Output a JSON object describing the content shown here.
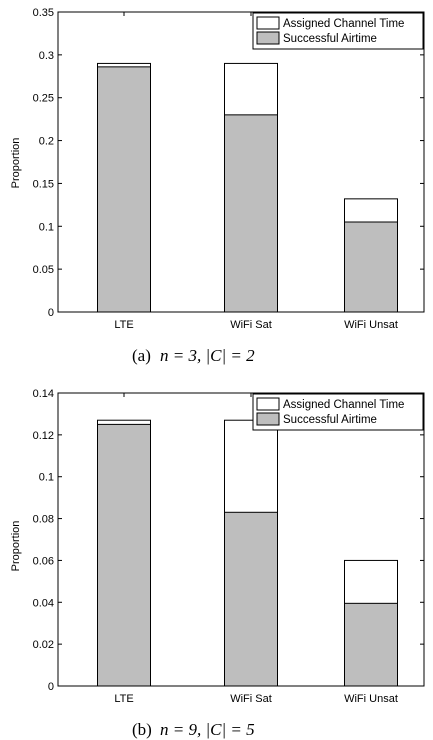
{
  "chart_data": [
    {
      "type": "bar",
      "stacked": "overlay",
      "categories": [
        "LTE",
        "WiFi Sat",
        "WiFi Unsat"
      ],
      "series": [
        {
          "name": "Assigned Channel Time",
          "color": "#ffffff",
          "values": [
            0.29,
            0.29,
            0.132
          ]
        },
        {
          "name": "Successful Airtime",
          "color": "#bebebe",
          "values": [
            0.286,
            0.23,
            0.105
          ]
        }
      ],
      "xlabel": "",
      "ylabel": "Proportion",
      "ylim": [
        0,
        0.35
      ],
      "yticks": [
        "0",
        "0.05",
        "0.1",
        "0.15",
        "0.2",
        "0.25",
        "0.3",
        "0.35"
      ],
      "grid": false,
      "legend_position": "top-right",
      "caption": {
        "label": "(a)",
        "math": "n = 3, |C| = 2"
      }
    },
    {
      "type": "bar",
      "stacked": "overlay",
      "categories": [
        "LTE",
        "WiFi Sat",
        "WiFi Unsat"
      ],
      "series": [
        {
          "name": "Assigned Channel Time",
          "color": "#ffffff",
          "values": [
            0.127,
            0.127,
            0.06
          ]
        },
        {
          "name": "Successful Airtime",
          "color": "#bebebe",
          "values": [
            0.125,
            0.083,
            0.0395
          ]
        }
      ],
      "xlabel": "",
      "ylabel": "Proportion",
      "ylim": [
        0,
        0.14
      ],
      "yticks": [
        "0",
        "0.02",
        "0.04",
        "0.06",
        "0.08",
        "0.1",
        "0.12",
        "0.14"
      ],
      "grid": false,
      "legend_position": "top-right",
      "caption": {
        "label": "(b)",
        "math": "n = 9, |C| = 5"
      }
    }
  ]
}
